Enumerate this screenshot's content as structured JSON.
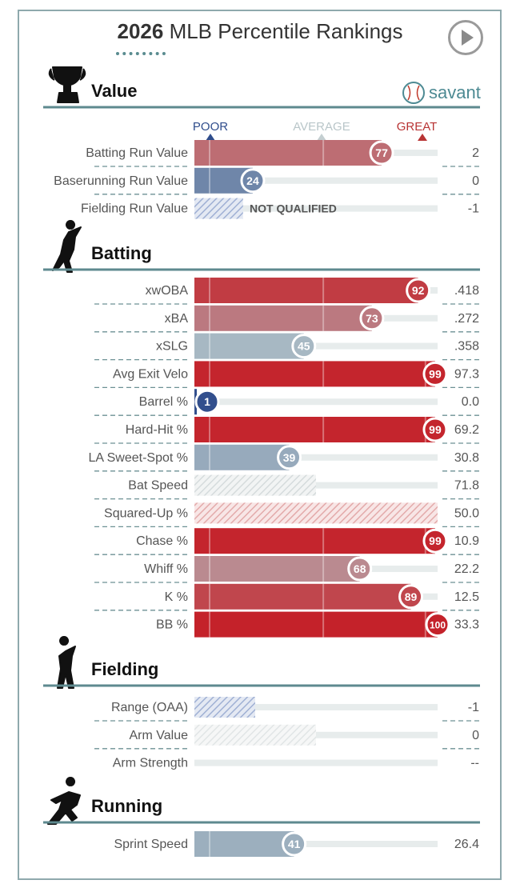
{
  "header": {
    "title_year": "2026",
    "title_rest": " MLB Percentile Rankings",
    "logo_text": "savant"
  },
  "scale": {
    "poor": "POOR",
    "average": "AVERAGE",
    "great": "GREAT",
    "poor_color": "#2f4d8c",
    "average_color": "#b9c6c9",
    "great_color": "#b83434"
  },
  "chart_data": {
    "type": "bar",
    "title": "2026 MLB Percentile Rankings",
    "xlim": [
      0,
      100
    ],
    "sections": [
      {
        "name": "Value",
        "icon": "trophy-icon",
        "metrics": [
          {
            "label": "Batting Run Value",
            "percentile": 77,
            "value": "2"
          },
          {
            "label": "Baserunning Run Value",
            "percentile": 24,
            "value": "0"
          },
          {
            "label": "Fielding Run Value",
            "percentile": null,
            "value": "-1",
            "status": "NOT QUALIFIED",
            "hatch_extent": 20
          }
        ]
      },
      {
        "name": "Batting",
        "icon": "batter-icon",
        "metrics": [
          {
            "label": "xwOBA",
            "percentile": 92,
            "value": ".418"
          },
          {
            "label": "xBA",
            "percentile": 73,
            "value": ".272"
          },
          {
            "label": "xSLG",
            "percentile": 45,
            "value": ".358"
          },
          {
            "label": "Avg Exit Velo",
            "percentile": 99,
            "value": "97.3"
          },
          {
            "label": "Barrel %",
            "percentile": 1,
            "value": "0.0"
          },
          {
            "label": "Hard-Hit %",
            "percentile": 99,
            "value": "69.2"
          },
          {
            "label": "LA Sweet-Spot %",
            "percentile": 39,
            "value": "30.8"
          },
          {
            "label": "Bat Speed",
            "percentile": null,
            "value": "71.8",
            "hatch_extent": 50,
            "hatch_color": "#c8cdce"
          },
          {
            "label": "Squared-Up %",
            "percentile": null,
            "value": "50.0",
            "hatch_extent": 100,
            "hatch_color": "#e5a8a8"
          },
          {
            "label": "Chase %",
            "percentile": 99,
            "value": "10.9"
          },
          {
            "label": "Whiff %",
            "percentile": 68,
            "value": "22.2"
          },
          {
            "label": "K %",
            "percentile": 89,
            "value": "12.5"
          },
          {
            "label": "BB %",
            "percentile": 100,
            "value": "33.3"
          }
        ]
      },
      {
        "name": "Fielding",
        "icon": "fielder-icon",
        "metrics": [
          {
            "label": "Range (OAA)",
            "percentile": null,
            "value": "-1",
            "hatch_extent": 25,
            "hatch_color": "#a9b6d6"
          },
          {
            "label": "Arm Value",
            "percentile": null,
            "value": "0",
            "hatch_extent": 50,
            "hatch_color": "#d7dcdd"
          },
          {
            "label": "Arm Strength",
            "percentile": null,
            "value": "--",
            "hatch_extent": 0
          }
        ]
      },
      {
        "name": "Running",
        "icon": "runner-icon",
        "metrics": [
          {
            "label": "Sprint Speed",
            "percentile": 41,
            "value": "26.4"
          }
        ]
      }
    ]
  }
}
